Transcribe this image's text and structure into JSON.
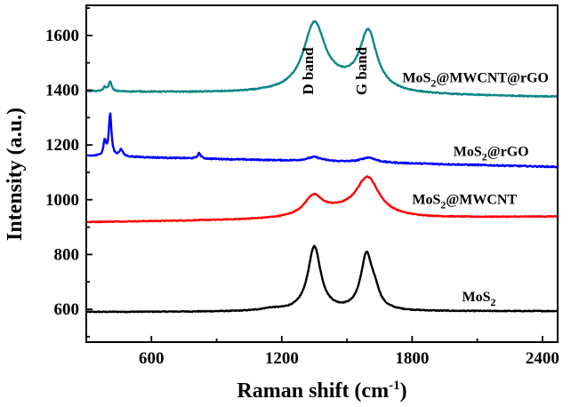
{
  "chart_data": {
    "type": "line",
    "xlabel": "Raman shift (cm",
    "xlabel_sup": "-1",
    "xlabel_end": ")",
    "ylabel": "Intensity (a.u.)",
    "xlim": [
      300,
      2470
    ],
    "ylim": [
      480,
      1710
    ],
    "xticks": [
      600,
      1200,
      1800,
      2400
    ],
    "yticks": [
      600,
      800,
      1000,
      1200,
      1400,
      1600
    ],
    "annotations": [
      {
        "text": "D band",
        "x": 1345,
        "y": 1470
      },
      {
        "text": "G band",
        "x": 1590,
        "y": 1470
      }
    ],
    "series": [
      {
        "name": "MoS2",
        "label_main": "MoS",
        "label_sub": "2",
        "label_rest": "",
        "color": "#000000",
        "label_x": 2030,
        "label_y": 630,
        "baseline_start": 590,
        "baseline_end": 593,
        "peaks": [
          {
            "x": 1350,
            "height": 235,
            "width": 36
          },
          {
            "x": 1590,
            "height": 200,
            "width": 32
          },
          {
            "x": 1630,
            "height": 45,
            "width": 25
          },
          {
            "x": 1150,
            "height": 8,
            "width": 60
          }
        ],
        "noise": 1.5
      },
      {
        "name": "MoS2@MWCNT",
        "label_main": "MoS",
        "label_sub": "2",
        "label_rest": "@MWCNT",
        "color": "#ff0000",
        "label_x": 1800,
        "label_y": 985,
        "baseline_start": 918,
        "baseline_end": 938,
        "peaks": [
          {
            "x": 1345,
            "height": 68,
            "width": 50
          },
          {
            "x": 1595,
            "height": 140,
            "width": 65
          },
          {
            "x": 1450,
            "height": 25,
            "width": 140
          }
        ],
        "noise": 1.5
      },
      {
        "name": "MoS2@rGO",
        "label_main": "MoS",
        "label_sub": "2",
        "label_rest": "@rGO",
        "color": "#0000ff",
        "label_x": 1990,
        "label_y": 1160,
        "baseline_start": 1160,
        "baseline_end": 1120,
        "peaks": [
          {
            "x": 410,
            "height": 155,
            "width": 7
          },
          {
            "x": 385,
            "height": 55,
            "width": 7
          },
          {
            "x": 460,
            "height": 25,
            "width": 10
          },
          {
            "x": 820,
            "height": 20,
            "width": 8
          },
          {
            "x": 1350,
            "height": 15,
            "width": 40
          },
          {
            "x": 1600,
            "height": 18,
            "width": 40
          }
        ],
        "noise": 2.2
      },
      {
        "name": "MoS2@MWCNT@rGO",
        "label_main": "MoS",
        "label_sub": "2",
        "label_rest": "@MWCNT@rGO",
        "color": "#0d8585",
        "label_x": 1755,
        "label_y": 1430,
        "baseline_start": 1395,
        "baseline_end": 1375,
        "peaks": [
          {
            "x": 1350,
            "height": 240,
            "width": 60
          },
          {
            "x": 1598,
            "height": 210,
            "width": 48
          },
          {
            "x": 1470,
            "height": 30,
            "width": 150
          },
          {
            "x": 410,
            "height": 35,
            "width": 8
          },
          {
            "x": 385,
            "height": 15,
            "width": 8
          }
        ],
        "noise": 1.8
      }
    ]
  }
}
